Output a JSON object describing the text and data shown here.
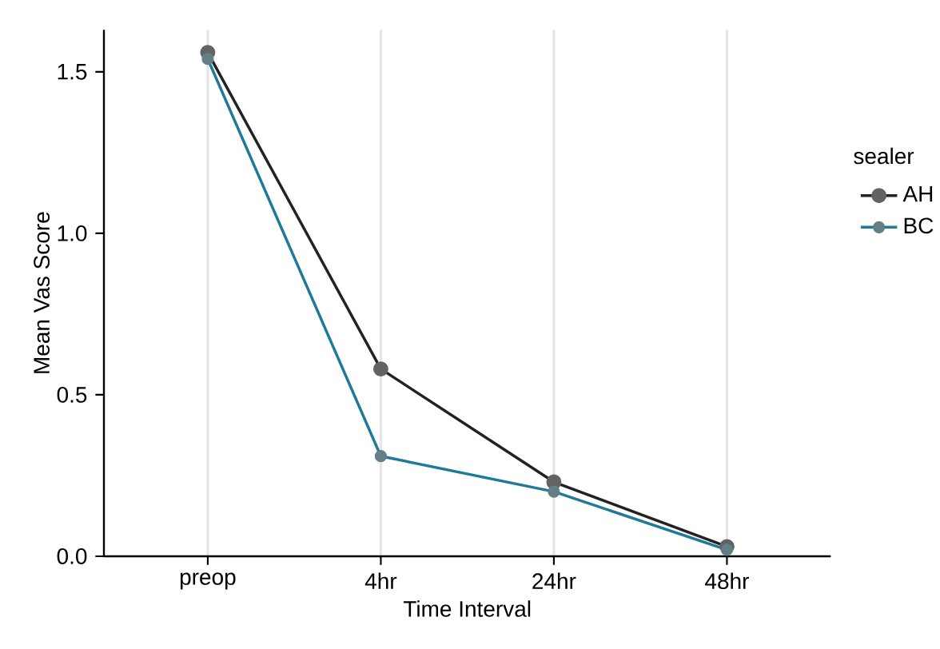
{
  "chart_data": {
    "type": "line",
    "xlabel": "Time Interval",
    "ylabel": "Mean Vas Score",
    "legend_title": "sealer",
    "categories": [
      "preop",
      "4hr",
      "24hr",
      "48hr"
    ],
    "series": [
      {
        "name": "AH",
        "color": "#222222",
        "values": [
          1.56,
          0.58,
          0.23,
          0.03
        ]
      },
      {
        "name": "BC",
        "color": "#1f7a99",
        "values": [
          1.54,
          0.31,
          0.2,
          0.02
        ]
      }
    ],
    "ylim": [
      0,
      1.63
    ],
    "yticks": [
      {
        "value": 0,
        "label": "0.0"
      },
      {
        "value": 0.5,
        "label": "0.5"
      },
      {
        "value": 1,
        "label": "1.0"
      },
      {
        "value": 1.5,
        "label": "1.5"
      }
    ],
    "grid": "x",
    "legend": "right",
    "marker": "circle",
    "line_style": "solid"
  }
}
